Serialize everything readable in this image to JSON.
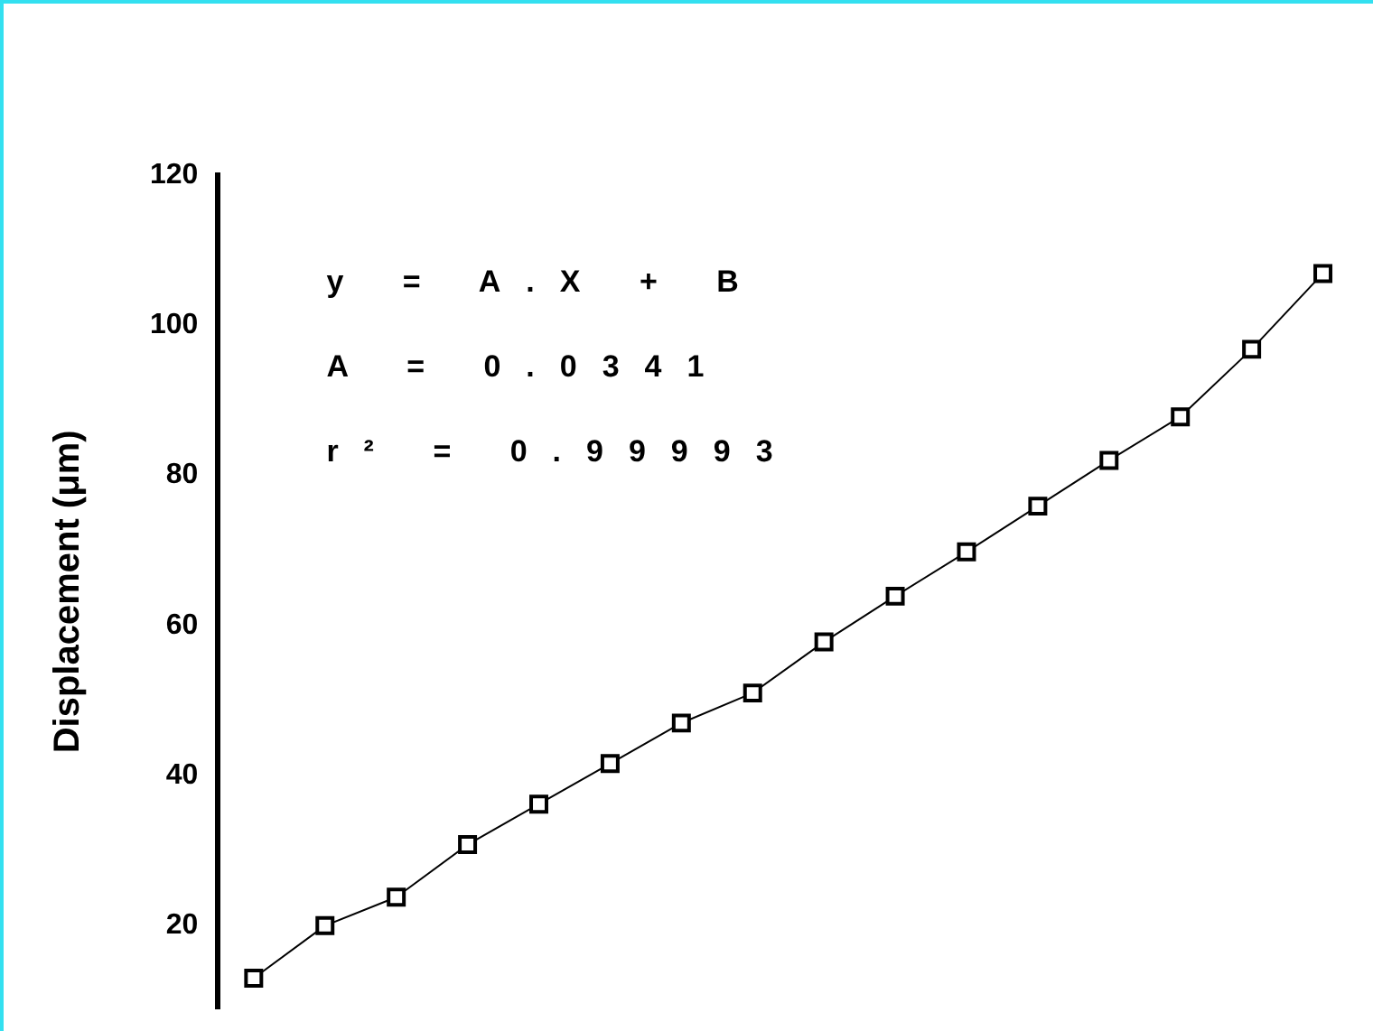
{
  "chart_data": {
    "type": "line",
    "ylabel": "Displacement (μm)",
    "categories": [
      null,
      null,
      null,
      null,
      null,
      null,
      null,
      null,
      null,
      null,
      null,
      null,
      null,
      null,
      null,
      null
    ],
    "series": [
      {
        "color": "#000000",
        "values": [
          13.0,
          20.0,
          23.8,
          30.8,
          36.2,
          41.6,
          47.0,
          51.0,
          57.8,
          63.9,
          69.8,
          75.9,
          82.0,
          87.8,
          96.8,
          106.9
        ]
      }
    ],
    "ylim": [
      9,
      120
    ],
    "yticks": [
      20,
      40,
      60,
      80,
      100,
      120
    ],
    "annotations": [
      "y = A.X + B",
      "A = 0.0341",
      "r² = 0.99993"
    ],
    "marker": "square",
    "line_style": "solid",
    "grid": false,
    "legend": false,
    "tick_labels": "y"
  }
}
